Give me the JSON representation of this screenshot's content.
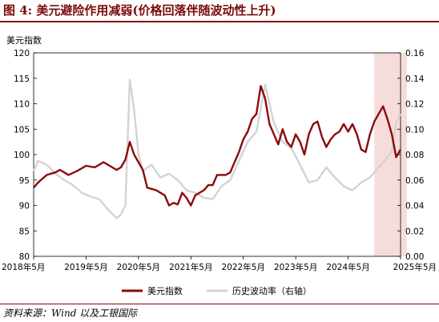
{
  "title": "图 4:  美元避险作用减弱(价格回落伴随波动性上升)",
  "source": "资料来源：Wind 以及工银国际",
  "colors": {
    "dxy": "#8b0a0a",
    "vol": "#d3d3d3",
    "shade": "#f7dcdc",
    "title": "#7a0a0a"
  },
  "chart_data": {
    "type": "line",
    "ylabel": "美元指数",
    "x_ticks": [
      "2018年5月",
      "2019年5月",
      "2020年5月",
      "2021年5月",
      "2022年5月",
      "2023年5月",
      "2024年5月",
      "2025年5月"
    ],
    "x_range": [
      "2018-05",
      "2025-05"
    ],
    "ylim_left": [
      80,
      120
    ],
    "yticks_left": [
      "80",
      "85",
      "90",
      "95",
      "100",
      "105",
      "110",
      "115",
      "120"
    ],
    "ylim_right": [
      0,
      0.16
    ],
    "yticks_right": [
      "0.00",
      "0.02",
      "0.04",
      "0.06",
      "0.08",
      "0.10",
      "0.12",
      "0.14",
      "0.16"
    ],
    "shaded_region": [
      "2024-11",
      "2025-05"
    ],
    "legend": [
      "美元指数",
      "历史波动率（右轴）"
    ],
    "series": [
      {
        "name": "美元指数",
        "axis": "left",
        "points": [
          [
            "2018-05",
            93.5
          ],
          [
            "2018-06",
            94.5
          ],
          [
            "2018-08",
            96
          ],
          [
            "2018-10",
            96.5
          ],
          [
            "2018-11",
            97
          ],
          [
            "2019-01",
            96
          ],
          [
            "2019-03",
            96.8
          ],
          [
            "2019-05",
            97.8
          ],
          [
            "2019-07",
            97.5
          ],
          [
            "2019-09",
            98.5
          ],
          [
            "2019-10",
            98
          ],
          [
            "2019-12",
            97
          ],
          [
            "2020-01",
            97.5
          ],
          [
            "2020-02",
            99
          ],
          [
            "2020-03",
            102.5
          ],
          [
            "2020-04",
            100
          ],
          [
            "2020-05",
            98.5
          ],
          [
            "2020-06",
            97
          ],
          [
            "2020-07",
            93.5
          ],
          [
            "2020-09",
            93
          ],
          [
            "2020-11",
            92
          ],
          [
            "2020-12",
            90
          ],
          [
            "2021-01",
            90.5
          ],
          [
            "2021-02",
            90.2
          ],
          [
            "2021-03",
            92.5
          ],
          [
            "2021-04",
            91.5
          ],
          [
            "2021-05",
            90
          ],
          [
            "2021-06",
            92
          ],
          [
            "2021-07",
            92.5
          ],
          [
            "2021-08",
            93
          ],
          [
            "2021-09",
            94
          ],
          [
            "2021-10",
            94
          ],
          [
            "2021-11",
            96
          ],
          [
            "2021-12",
            96
          ],
          [
            "2022-01",
            96
          ],
          [
            "2022-02",
            96.5
          ],
          [
            "2022-03",
            98.5
          ],
          [
            "2022-04",
            100.5
          ],
          [
            "2022-05",
            103
          ],
          [
            "2022-06",
            104.5
          ],
          [
            "2022-07",
            107
          ],
          [
            "2022-08",
            108
          ],
          [
            "2022-09",
            113.5
          ],
          [
            "2022-10",
            111
          ],
          [
            "2022-11",
            106
          ],
          [
            "2022-12",
            104
          ],
          [
            "2023-01",
            102
          ],
          [
            "2023-02",
            105
          ],
          [
            "2023-03",
            102.5
          ],
          [
            "2023-04",
            101.5
          ],
          [
            "2023-05",
            104
          ],
          [
            "2023-06",
            102.5
          ],
          [
            "2023-07",
            100
          ],
          [
            "2023-08",
            104
          ],
          [
            "2023-09",
            106
          ],
          [
            "2023-10",
            106.5
          ],
          [
            "2023-11",
            103.5
          ],
          [
            "2023-12",
            101.5
          ],
          [
            "2024-01",
            103
          ],
          [
            "2024-02",
            104
          ],
          [
            "2024-03",
            104.5
          ],
          [
            "2024-04",
            106
          ],
          [
            "2024-05",
            104.5
          ],
          [
            "2024-06",
            106
          ],
          [
            "2024-07",
            104
          ],
          [
            "2024-08",
            101
          ],
          [
            "2024-09",
            100.5
          ],
          [
            "2024-10",
            104
          ],
          [
            "2024-11",
            106.5
          ],
          [
            "2024-12",
            108
          ],
          [
            "2025-01",
            109.5
          ],
          [
            "2025-02",
            107
          ],
          [
            "2025-03",
            104
          ],
          [
            "2025-04",
            99.5
          ],
          [
            "2025-05",
            101
          ]
        ]
      },
      {
        "name": "历史波动率（右轴）",
        "axis": "right",
        "points": [
          [
            "2018-05",
            0.067
          ],
          [
            "2018-06",
            0.075
          ],
          [
            "2018-08",
            0.072
          ],
          [
            "2018-10",
            0.065
          ],
          [
            "2018-12",
            0.06
          ],
          [
            "2019-02",
            0.056
          ],
          [
            "2019-04",
            0.05
          ],
          [
            "2019-06",
            0.047
          ],
          [
            "2019-08",
            0.045
          ],
          [
            "2019-10",
            0.037
          ],
          [
            "2019-12",
            0.03
          ],
          [
            "2020-01",
            0.033
          ],
          [
            "2020-02",
            0.04
          ],
          [
            "2020-03",
            0.139
          ],
          [
            "2020-04",
            0.115
          ],
          [
            "2020-05",
            0.08
          ],
          [
            "2020-06",
            0.067
          ],
          [
            "2020-08",
            0.072
          ],
          [
            "2020-10",
            0.062
          ],
          [
            "2020-12",
            0.065
          ],
          [
            "2021-02",
            0.06
          ],
          [
            "2021-04",
            0.052
          ],
          [
            "2021-06",
            0.05
          ],
          [
            "2021-08",
            0.046
          ],
          [
            "2021-10",
            0.045
          ],
          [
            "2021-12",
            0.055
          ],
          [
            "2022-02",
            0.06
          ],
          [
            "2022-04",
            0.075
          ],
          [
            "2022-06",
            0.09
          ],
          [
            "2022-08",
            0.098
          ],
          [
            "2022-10",
            0.135
          ],
          [
            "2022-11",
            0.12
          ],
          [
            "2022-12",
            0.105
          ],
          [
            "2023-02",
            0.09
          ],
          [
            "2023-04",
            0.085
          ],
          [
            "2023-06",
            0.072
          ],
          [
            "2023-08",
            0.058
          ],
          [
            "2023-10",
            0.06
          ],
          [
            "2023-12",
            0.07
          ],
          [
            "2024-02",
            0.062
          ],
          [
            "2024-04",
            0.055
          ],
          [
            "2024-06",
            0.052
          ],
          [
            "2024-08",
            0.058
          ],
          [
            "2024-10",
            0.062
          ],
          [
            "2024-12",
            0.07
          ],
          [
            "2025-02",
            0.078
          ],
          [
            "2025-03",
            0.082
          ],
          [
            "2025-04",
            0.105
          ],
          [
            "2025-05",
            0.112
          ]
        ]
      }
    ]
  }
}
